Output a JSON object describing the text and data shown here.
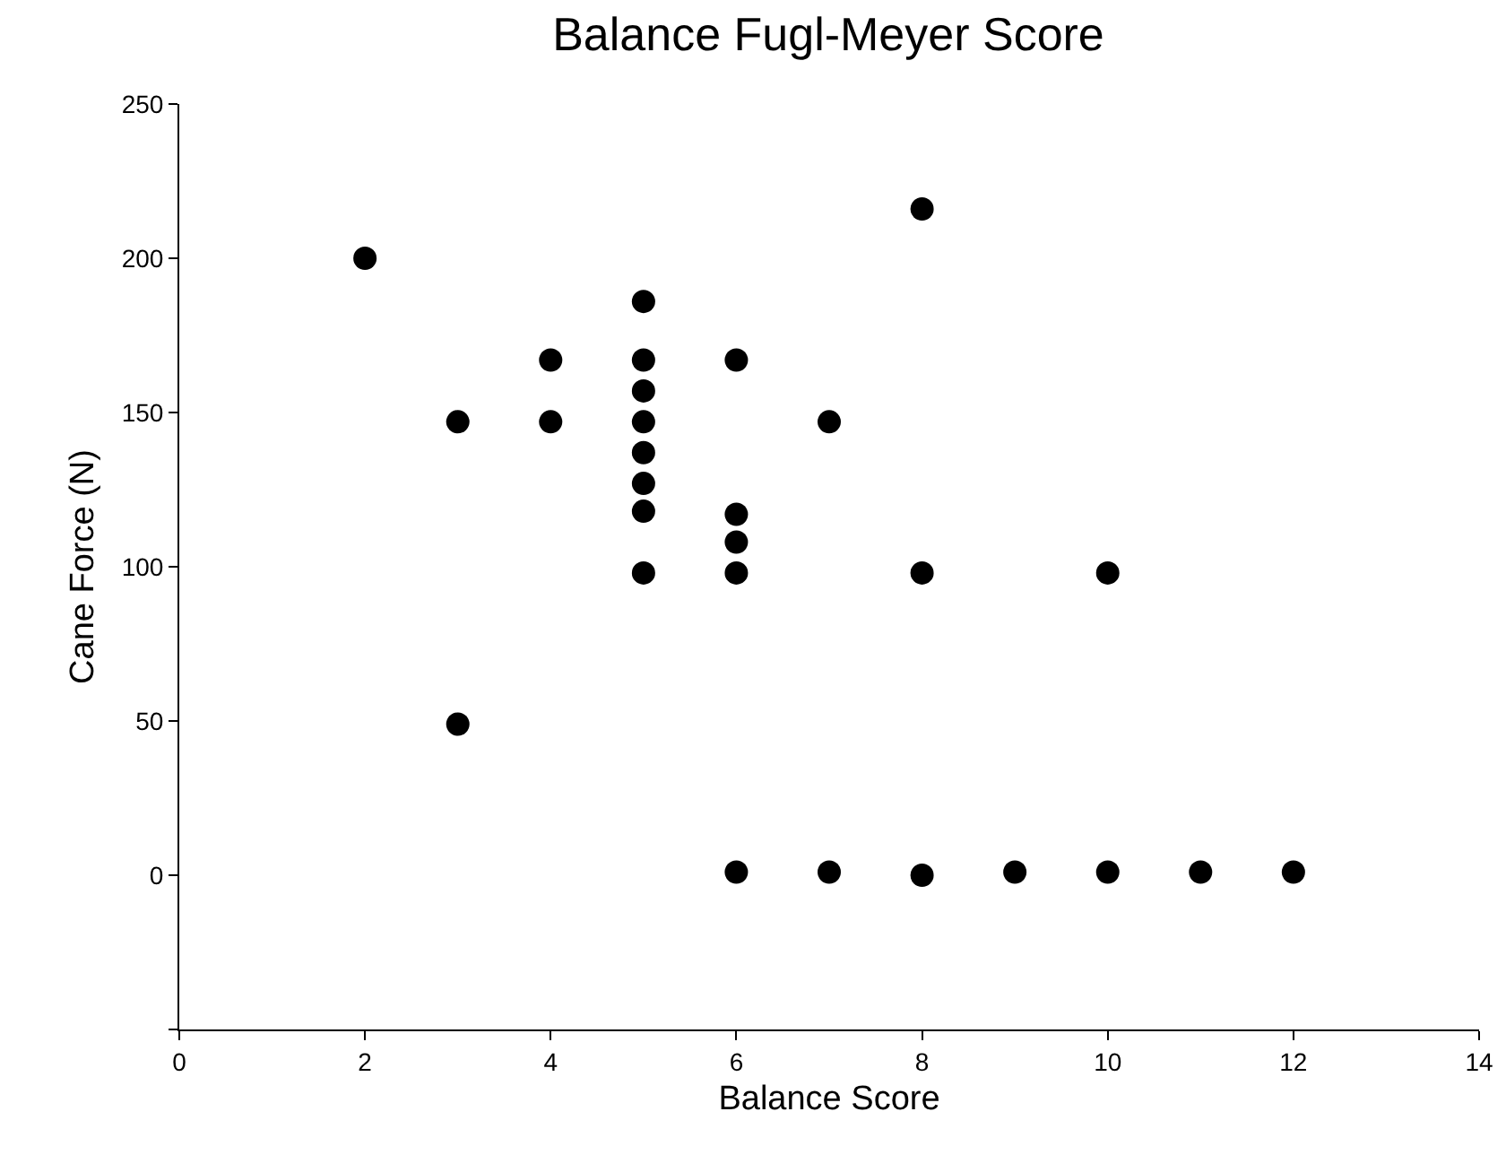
{
  "chart_data": {
    "type": "scatter",
    "title": "Balance Fugl-Meyer Score",
    "xlabel": "Balance Score",
    "ylabel": "Cane Force (N)",
    "x": [
      2,
      3,
      3,
      4,
      4,
      5,
      5,
      5,
      5,
      5,
      5,
      5,
      5,
      6,
      6,
      6,
      6,
      7,
      8,
      8,
      10,
      6,
      7,
      8,
      9,
      10,
      11,
      12
    ],
    "series": [
      {
        "color": "#000000",
        "values": [
          200,
          147,
          49,
          167,
          147,
          186,
          167,
          157,
          147,
          137,
          127,
          118,
          98,
          167,
          117,
          108,
          98,
          147,
          216,
          98,
          98,
          1,
          1,
          0,
          1,
          1,
          1,
          1
        ]
      }
    ],
    "xlim": [
      0,
      14
    ],
    "xticks": [
      0,
      2,
      4,
      6,
      8,
      10,
      12,
      14
    ],
    "ylim": [
      -50,
      250
    ],
    "yticks": [
      {
        "value": -50,
        "label": null
      },
      0,
      50,
      100,
      150,
      200,
      250
    ],
    "grid": false,
    "marker": "circle"
  }
}
